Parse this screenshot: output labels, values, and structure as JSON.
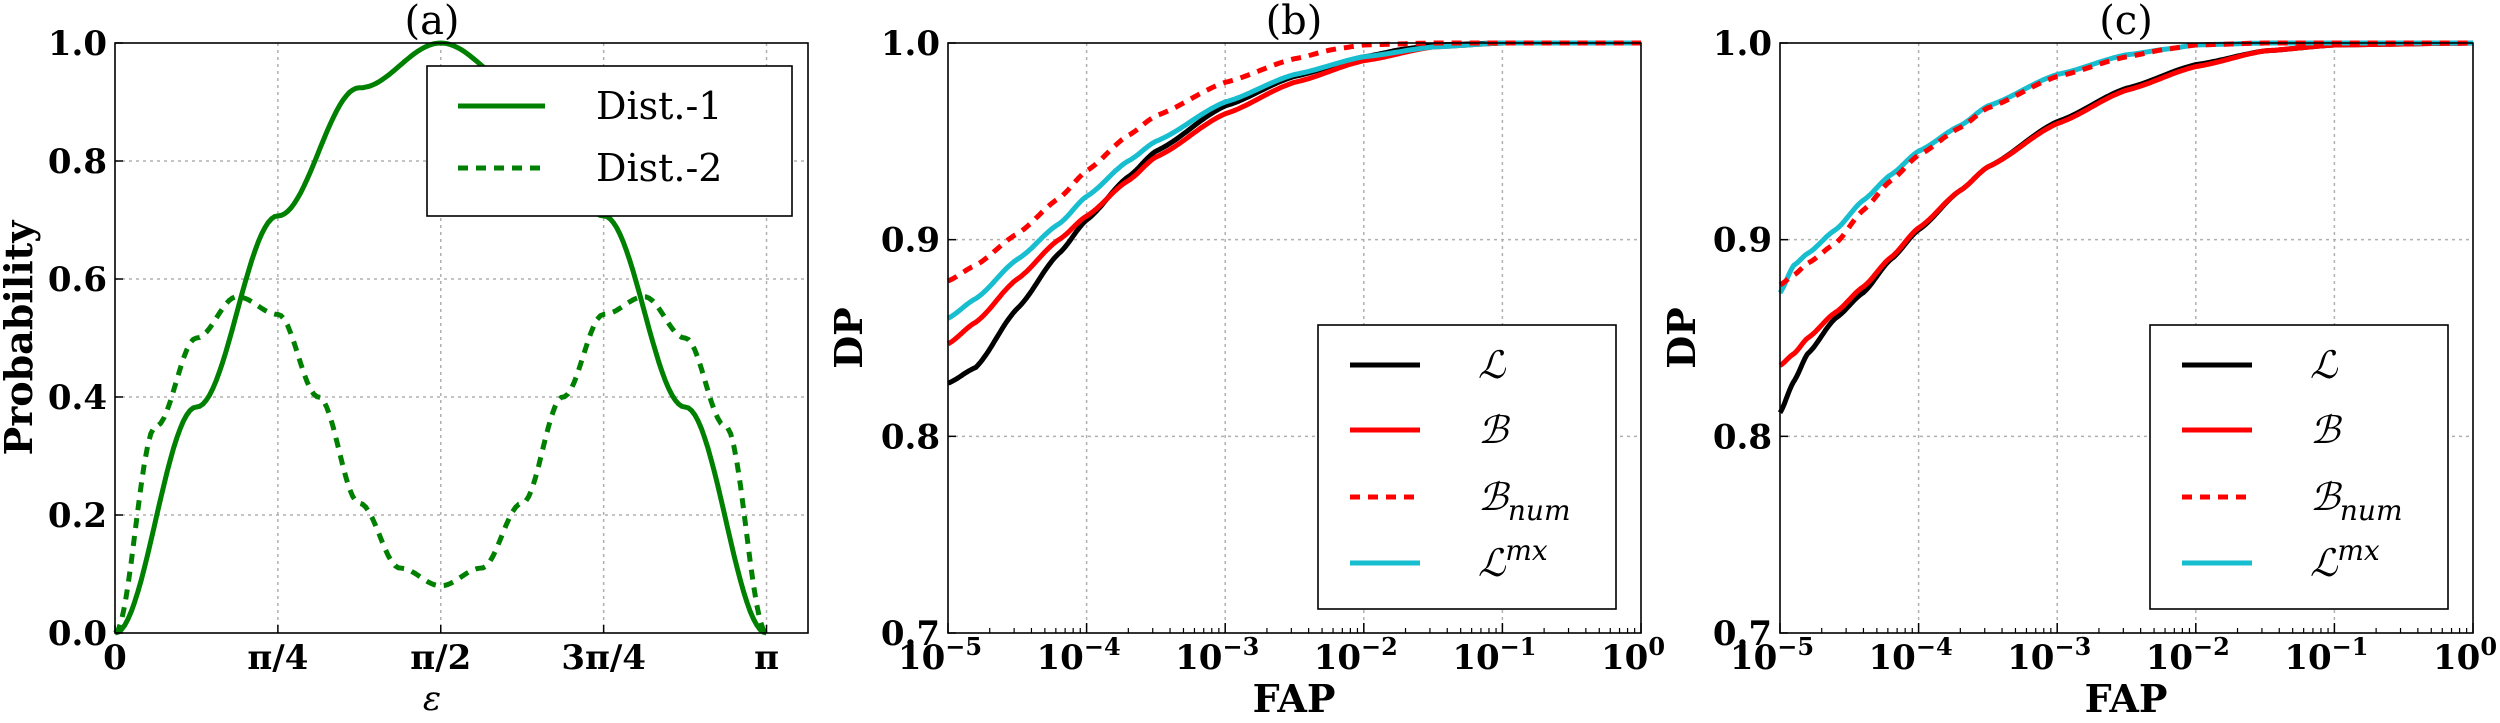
{
  "chart_data": [
    {
      "type": "line",
      "title": "(a)",
      "xlabel": "ε",
      "ylabel": "Probability",
      "xlim": [
        0,
        3.3416
      ],
      "ylim": [
        0,
        1.0
      ],
      "xticks": [
        0,
        0.7854,
        1.5708,
        2.3562,
        3.1416
      ],
      "xtick_labels": [
        "0",
        "π/4",
        "π/2",
        "3π/4",
        "π"
      ],
      "yticks": [
        0.0,
        0.2,
        0.4,
        0.6,
        0.8,
        1.0
      ],
      "ytick_labels": [
        "0.0",
        "0.2",
        "0.4",
        "0.6",
        "0.8",
        "1.0"
      ],
      "grid": true,
      "legend_position": "top-right",
      "series": [
        {
          "name": "Dist.-1",
          "style": "solid",
          "color": "#008000",
          "x": [
            0,
            0.3927,
            0.7854,
            1.1781,
            1.5708,
            1.9635,
            2.3562,
            2.7489,
            3.1416
          ],
          "y": [
            0,
            0.383,
            0.707,
            0.924,
            1.0,
            0.924,
            0.707,
            0.383,
            0
          ]
        },
        {
          "name": "Dist.-2",
          "style": "dashed",
          "color": "#008000",
          "x": [
            0,
            0.1963,
            0.3927,
            0.589,
            0.7854,
            0.9817,
            1.1781,
            1.3744,
            1.5708,
            1.7671,
            1.9635,
            2.1598,
            2.3562,
            2.5525,
            2.7489,
            2.9452,
            3.1416
          ],
          "y": [
            0,
            0.35,
            0.5,
            0.57,
            0.54,
            0.4,
            0.22,
            0.11,
            0.08,
            0.11,
            0.22,
            0.4,
            0.54,
            0.57,
            0.5,
            0.35,
            0
          ]
        }
      ]
    },
    {
      "type": "line",
      "title": "(b)",
      "xlabel": "FAP",
      "ylabel": "DP",
      "xscale": "log",
      "xlim": [
        1e-05,
        1
      ],
      "ylim": [
        0.7,
        1.0
      ],
      "xtick_exponents": [
        -5,
        -4,
        -3,
        -2,
        -1
      ],
      "xtick_base": "10",
      "xtick_last": "10",
      "xtick_last_exp": "0",
      "yticks": [
        0.7,
        0.8,
        0.9,
        1.0
      ],
      "ytick_labels": [
        "0.7",
        "0.8",
        "0.9",
        "1.0"
      ],
      "grid": true,
      "legend_position": "lower-right",
      "series": [
        {
          "name": "ℒ",
          "style": "solid",
          "color": "#000000",
          "logx": [
            -5,
            -4.8,
            -4.5,
            -4.2,
            -4,
            -3.7,
            -3.5,
            -3,
            -2.5,
            -2,
            -1.7,
            -1.5,
            -1,
            0
          ],
          "y": [
            0.827,
            0.835,
            0.865,
            0.893,
            0.91,
            0.932,
            0.945,
            0.968,
            0.983,
            0.993,
            0.997,
            0.999,
            1.0,
            1.0
          ]
        },
        {
          "name": "ℬ",
          "style": "solid",
          "color": "#ff0000",
          "logx": [
            -5,
            -4.8,
            -4.5,
            -4.2,
            -4,
            -3.7,
            -3.5,
            -3,
            -2.5,
            -2,
            -1.5,
            -1,
            0
          ],
          "y": [
            0.847,
            0.858,
            0.88,
            0.9,
            0.912,
            0.93,
            0.942,
            0.964,
            0.98,
            0.991,
            0.998,
            1.0,
            1.0
          ]
        },
        {
          "name": "ℬnum",
          "style": "dashed",
          "color": "#ff0000",
          "logx": [
            -5,
            -4.8,
            -4.5,
            -4.2,
            -4,
            -3.7,
            -3.5,
            -3,
            -2.5,
            -2.2,
            -2,
            -1.5,
            0
          ],
          "y": [
            0.879,
            0.887,
            0.903,
            0.921,
            0.935,
            0.953,
            0.963,
            0.98,
            0.992,
            0.997,
            0.999,
            1.0,
            1.0
          ]
        },
        {
          "name": "ℒmx",
          "style": "solid",
          "color": "#17becf",
          "logx": [
            -5,
            -4.8,
            -4.5,
            -4.2,
            -4,
            -3.7,
            -3.5,
            -3,
            -2.5,
            -2,
            -1.5,
            -1,
            0
          ],
          "y": [
            0.86,
            0.87,
            0.89,
            0.908,
            0.922,
            0.94,
            0.95,
            0.97,
            0.984,
            0.993,
            0.998,
            1.0,
            1.0
          ]
        }
      ]
    },
    {
      "type": "line",
      "title": "(c)",
      "xlabel": "FAP",
      "ylabel": "DP",
      "xscale": "log",
      "xlim": [
        1e-05,
        1
      ],
      "ylim": [
        0.7,
        1.0
      ],
      "xtick_exponents": [
        -5,
        -4,
        -3,
        -2,
        -1
      ],
      "xtick_base": "10",
      "xtick_last": "10",
      "xtick_last_exp": "0",
      "yticks": [
        0.7,
        0.8,
        0.9,
        1.0
      ],
      "ytick_labels": [
        "0.7",
        "0.8",
        "0.9",
        "1.0"
      ],
      "grid": true,
      "legend_position": "lower-right",
      "series": [
        {
          "name": "ℒ",
          "style": "solid",
          "color": "#000000",
          "logx": [
            -5,
            -4.9,
            -4.8,
            -4.6,
            -4.4,
            -4.2,
            -4,
            -3.7,
            -3.5,
            -3,
            -2.5,
            -2,
            -1.5,
            -1,
            0
          ],
          "y": [
            0.812,
            0.828,
            0.842,
            0.86,
            0.873,
            0.89,
            0.905,
            0.925,
            0.937,
            0.96,
            0.977,
            0.989,
            0.996,
            0.999,
            1.0
          ]
        },
        {
          "name": "ℬ",
          "style": "solid",
          "color": "#ff0000",
          "logx": [
            -5,
            -4.9,
            -4.8,
            -4.6,
            -4.4,
            -4.2,
            -4,
            -3.7,
            -3.5,
            -3,
            -2.5,
            -2,
            -1.5,
            -1,
            0
          ],
          "y": [
            0.836,
            0.842,
            0.85,
            0.863,
            0.876,
            0.891,
            0.906,
            0.925,
            0.937,
            0.959,
            0.976,
            0.988,
            0.996,
            0.999,
            1.0
          ]
        },
        {
          "name": "ℬnum",
          "style": "dashed",
          "color": "#ff0000",
          "logx": [
            -5,
            -4.9,
            -4.8,
            -4.6,
            -4.4,
            -4.2,
            -4,
            -3.7,
            -3.5,
            -3,
            -2.5,
            -2.2,
            -2,
            -1.5,
            0
          ],
          "y": [
            0.877,
            0.882,
            0.888,
            0.898,
            0.915,
            0.93,
            0.943,
            0.957,
            0.967,
            0.983,
            0.993,
            0.997,
            0.999,
            1.0,
            1.0
          ]
        },
        {
          "name": "ℒmx",
          "style": "solid",
          "color": "#17becf",
          "logx": [
            -5,
            -4.9,
            -4.8,
            -4.6,
            -4.4,
            -4.2,
            -4,
            -3.7,
            -3.5,
            -3,
            -2.5,
            -2.2,
            -2,
            -1.5,
            0
          ],
          "y": [
            0.873,
            0.887,
            0.893,
            0.905,
            0.92,
            0.933,
            0.945,
            0.958,
            0.968,
            0.984,
            0.994,
            0.997,
            0.999,
            1.0,
            1.0
          ]
        }
      ]
    }
  ],
  "legend_math": {
    "L": "ℒ",
    "B": "ℬ",
    "Bnum_base": "ℬ",
    "Bnum_sub": "num",
    "Lmx_base": "ℒ",
    "Lmx_sup": "mx"
  }
}
